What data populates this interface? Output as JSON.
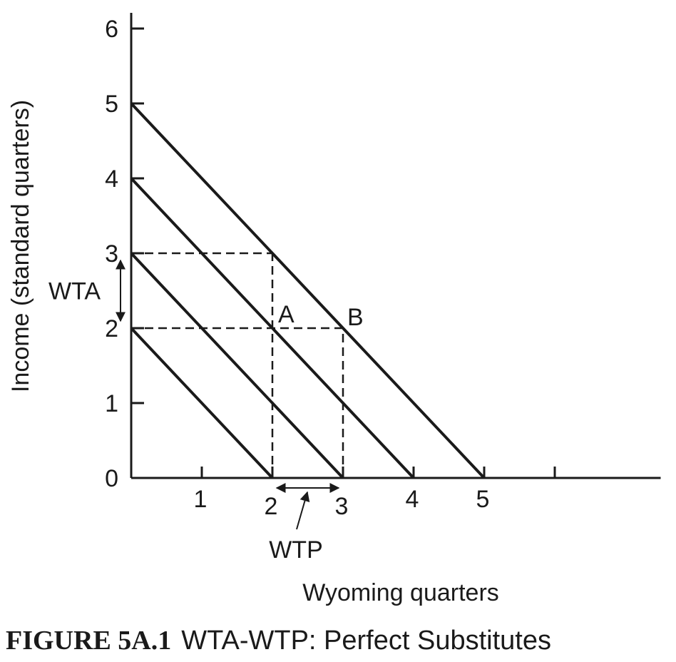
{
  "chart_data": {
    "type": "line",
    "xlabel": "Wyoming quarters",
    "ylabel": "Income (standard quarters)",
    "xlim": [
      0,
      7.5
    ],
    "ylim": [
      0,
      6.2
    ],
    "x_ticks": [
      1,
      2,
      3,
      4,
      5,
      6
    ],
    "x_tick_labels": [
      "1",
      "2",
      "3",
      "4",
      "5",
      ""
    ],
    "y_ticks": [
      0,
      1,
      2,
      3,
      4,
      5,
      6
    ],
    "y_tick_labels": [
      "0",
      "1",
      "2",
      "3",
      "4",
      "5",
      "6"
    ],
    "grid": false,
    "series": [
      {
        "x": [
          0,
          2
        ],
        "y": [
          2,
          0
        ]
      },
      {
        "x": [
          0,
          3
        ],
        "y": [
          3,
          0
        ]
      },
      {
        "x": [
          0,
          4
        ],
        "y": [
          4,
          0
        ]
      },
      {
        "x": [
          0,
          5
        ],
        "y": [
          5,
          0
        ]
      }
    ],
    "reference_lines": [
      {
        "x": [
          0,
          2
        ],
        "y": [
          3,
          3
        ]
      },
      {
        "x": [
          0,
          3
        ],
        "y": [
          2,
          2
        ]
      },
      {
        "x": [
          2,
          2
        ],
        "y": [
          0,
          3
        ]
      },
      {
        "x": [
          3,
          3
        ],
        "y": [
          0,
          2
        ]
      }
    ],
    "points": [
      {
        "label": "A",
        "x": 2,
        "y": 2
      },
      {
        "label": "B",
        "x": 3,
        "y": 2
      }
    ],
    "annotations": {
      "wta": {
        "label": "WTA",
        "y_from": 2,
        "y_to": 3
      },
      "wtp": {
        "label": "WTP",
        "x_from": 2,
        "x_to": 3
      }
    }
  },
  "caption": {
    "number": "FIGURE 5A.1",
    "text": "WTA-WTP: Perfect Substitutes"
  }
}
